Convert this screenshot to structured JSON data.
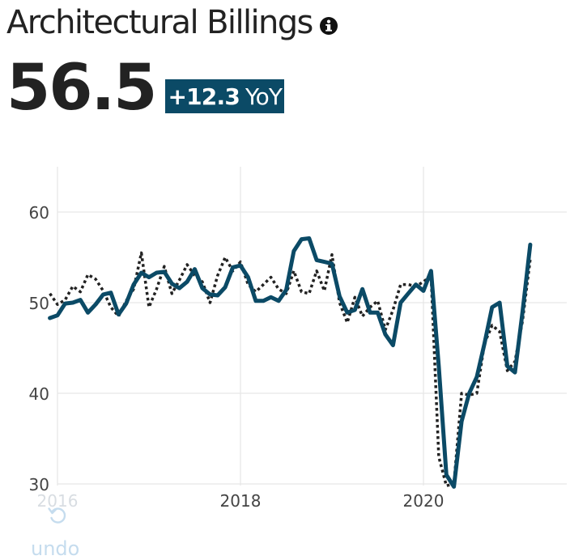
{
  "header": {
    "title": "Architectural Billings",
    "info_icon": "info-icon"
  },
  "kpi": {
    "value": "56.5",
    "change": "+12.3",
    "change_unit": "YoY",
    "badge_color": "#0b4a66"
  },
  "undo": {
    "icon": "undo-icon",
    "label": "undo"
  },
  "colors": {
    "primary_series": "#0b4a66",
    "comparison_series": "#222222",
    "grid": "#e6e6e6"
  },
  "chart_data": {
    "type": "line",
    "title": "",
    "xlabel": "",
    "ylabel": "",
    "xlim": [
      2016,
      2021.583
    ],
    "ylim": [
      30,
      65
    ],
    "x_ticks": [
      2016,
      2018,
      2020
    ],
    "x_tick_labels": [
      "2016",
      "2018",
      "2020"
    ],
    "y_ticks": [
      30,
      40,
      50,
      60
    ],
    "y_tick_labels": [
      "30",
      "40",
      "50",
      "60"
    ],
    "grid": true,
    "legend": "none",
    "series": [
      {
        "style": "solid",
        "color": "#0b4a66",
        "x": [
          2015.917,
          2016.0,
          2016.083,
          2016.167,
          2016.25,
          2016.333,
          2016.417,
          2016.5,
          2016.583,
          2016.667,
          2016.75,
          2016.833,
          2016.917,
          2017.0,
          2017.083,
          2017.167,
          2017.25,
          2017.333,
          2017.417,
          2017.5,
          2017.583,
          2017.667,
          2017.75,
          2017.833,
          2017.917,
          2018.0,
          2018.083,
          2018.167,
          2018.25,
          2018.333,
          2018.417,
          2018.5,
          2018.583,
          2018.667,
          2018.75,
          2018.833,
          2018.917,
          2019.0,
          2019.083,
          2019.167,
          2019.25,
          2019.333,
          2019.417,
          2019.5,
          2019.583,
          2019.667,
          2019.75,
          2019.833,
          2019.917,
          2020.0,
          2020.083,
          2020.167,
          2020.25,
          2020.333,
          2020.417,
          2020.5,
          2020.583,
          2020.667,
          2020.75,
          2020.833,
          2020.917,
          2021.0,
          2021.083,
          2021.167
        ],
        "y": [
          48.3,
          48.6,
          49.9,
          50.0,
          50.3,
          48.9,
          49.8,
          50.9,
          51.1,
          48.7,
          49.9,
          52.0,
          53.3,
          52.8,
          53.3,
          53.4,
          52.1,
          51.6,
          52.3,
          53.7,
          51.6,
          50.9,
          50.8,
          51.7,
          53.9,
          54.1,
          52.8,
          50.2,
          50.2,
          50.6,
          50.2,
          51.4,
          55.7,
          57.0,
          57.1,
          54.7,
          54.5,
          54.3,
          50.7,
          48.9,
          49.2,
          51.5,
          48.9,
          48.9,
          46.5,
          45.3,
          50.0,
          51.0,
          52.0,
          51.3,
          53.5,
          43.0,
          31.0,
          29.7,
          36.9,
          40.0,
          41.8,
          45.5,
          49.5,
          50.0,
          43.0,
          42.3,
          49.0,
          56.4
        ]
      },
      {
        "style": "dotted",
        "color": "#222222",
        "x": [
          2015.917,
          2016.0,
          2016.083,
          2016.167,
          2016.25,
          2016.333,
          2016.417,
          2016.5,
          2016.583,
          2016.667,
          2016.75,
          2016.833,
          2016.917,
          2017.0,
          2017.083,
          2017.167,
          2017.25,
          2017.333,
          2017.417,
          2017.5,
          2017.583,
          2017.667,
          2017.75,
          2017.833,
          2017.917,
          2018.0,
          2018.083,
          2018.167,
          2018.25,
          2018.333,
          2018.417,
          2018.5,
          2018.583,
          2018.667,
          2018.75,
          2018.833,
          2018.917,
          2019.0,
          2019.083,
          2019.167,
          2019.25,
          2019.333,
          2019.417,
          2019.5,
          2019.583,
          2019.667,
          2019.75,
          2019.833,
          2019.917,
          2020.0,
          2020.083,
          2020.167,
          2020.25,
          2020.333,
          2020.417,
          2020.5,
          2020.583,
          2020.667,
          2020.75,
          2020.833,
          2020.917,
          2021.0,
          2021.083,
          2021.167
        ],
        "y": [
          51.0,
          49.8,
          50.3,
          51.8,
          51.2,
          53.1,
          52.6,
          51.3,
          49.5,
          48.5,
          50.2,
          51.5,
          55.5,
          49.5,
          51.5,
          54.0,
          51.0,
          52.5,
          54.2,
          53.0,
          52.3,
          50.0,
          53.0,
          55.0,
          53.5,
          54.5,
          52.0,
          51.2,
          52.0,
          52.8,
          51.5,
          51.0,
          53.5,
          51.2,
          51.0,
          53.5,
          51.3,
          55.3,
          50.0,
          47.8,
          50.6,
          48.5,
          49.5,
          50.2,
          47.0,
          49.2,
          52.0,
          52.0,
          51.8,
          52.3,
          53.0,
          33.0,
          29.8,
          30.0,
          40.0,
          39.8,
          40.0,
          45.5,
          47.5,
          46.8,
          42.5,
          43.5,
          48.0,
          54.8
        ]
      }
    ]
  }
}
